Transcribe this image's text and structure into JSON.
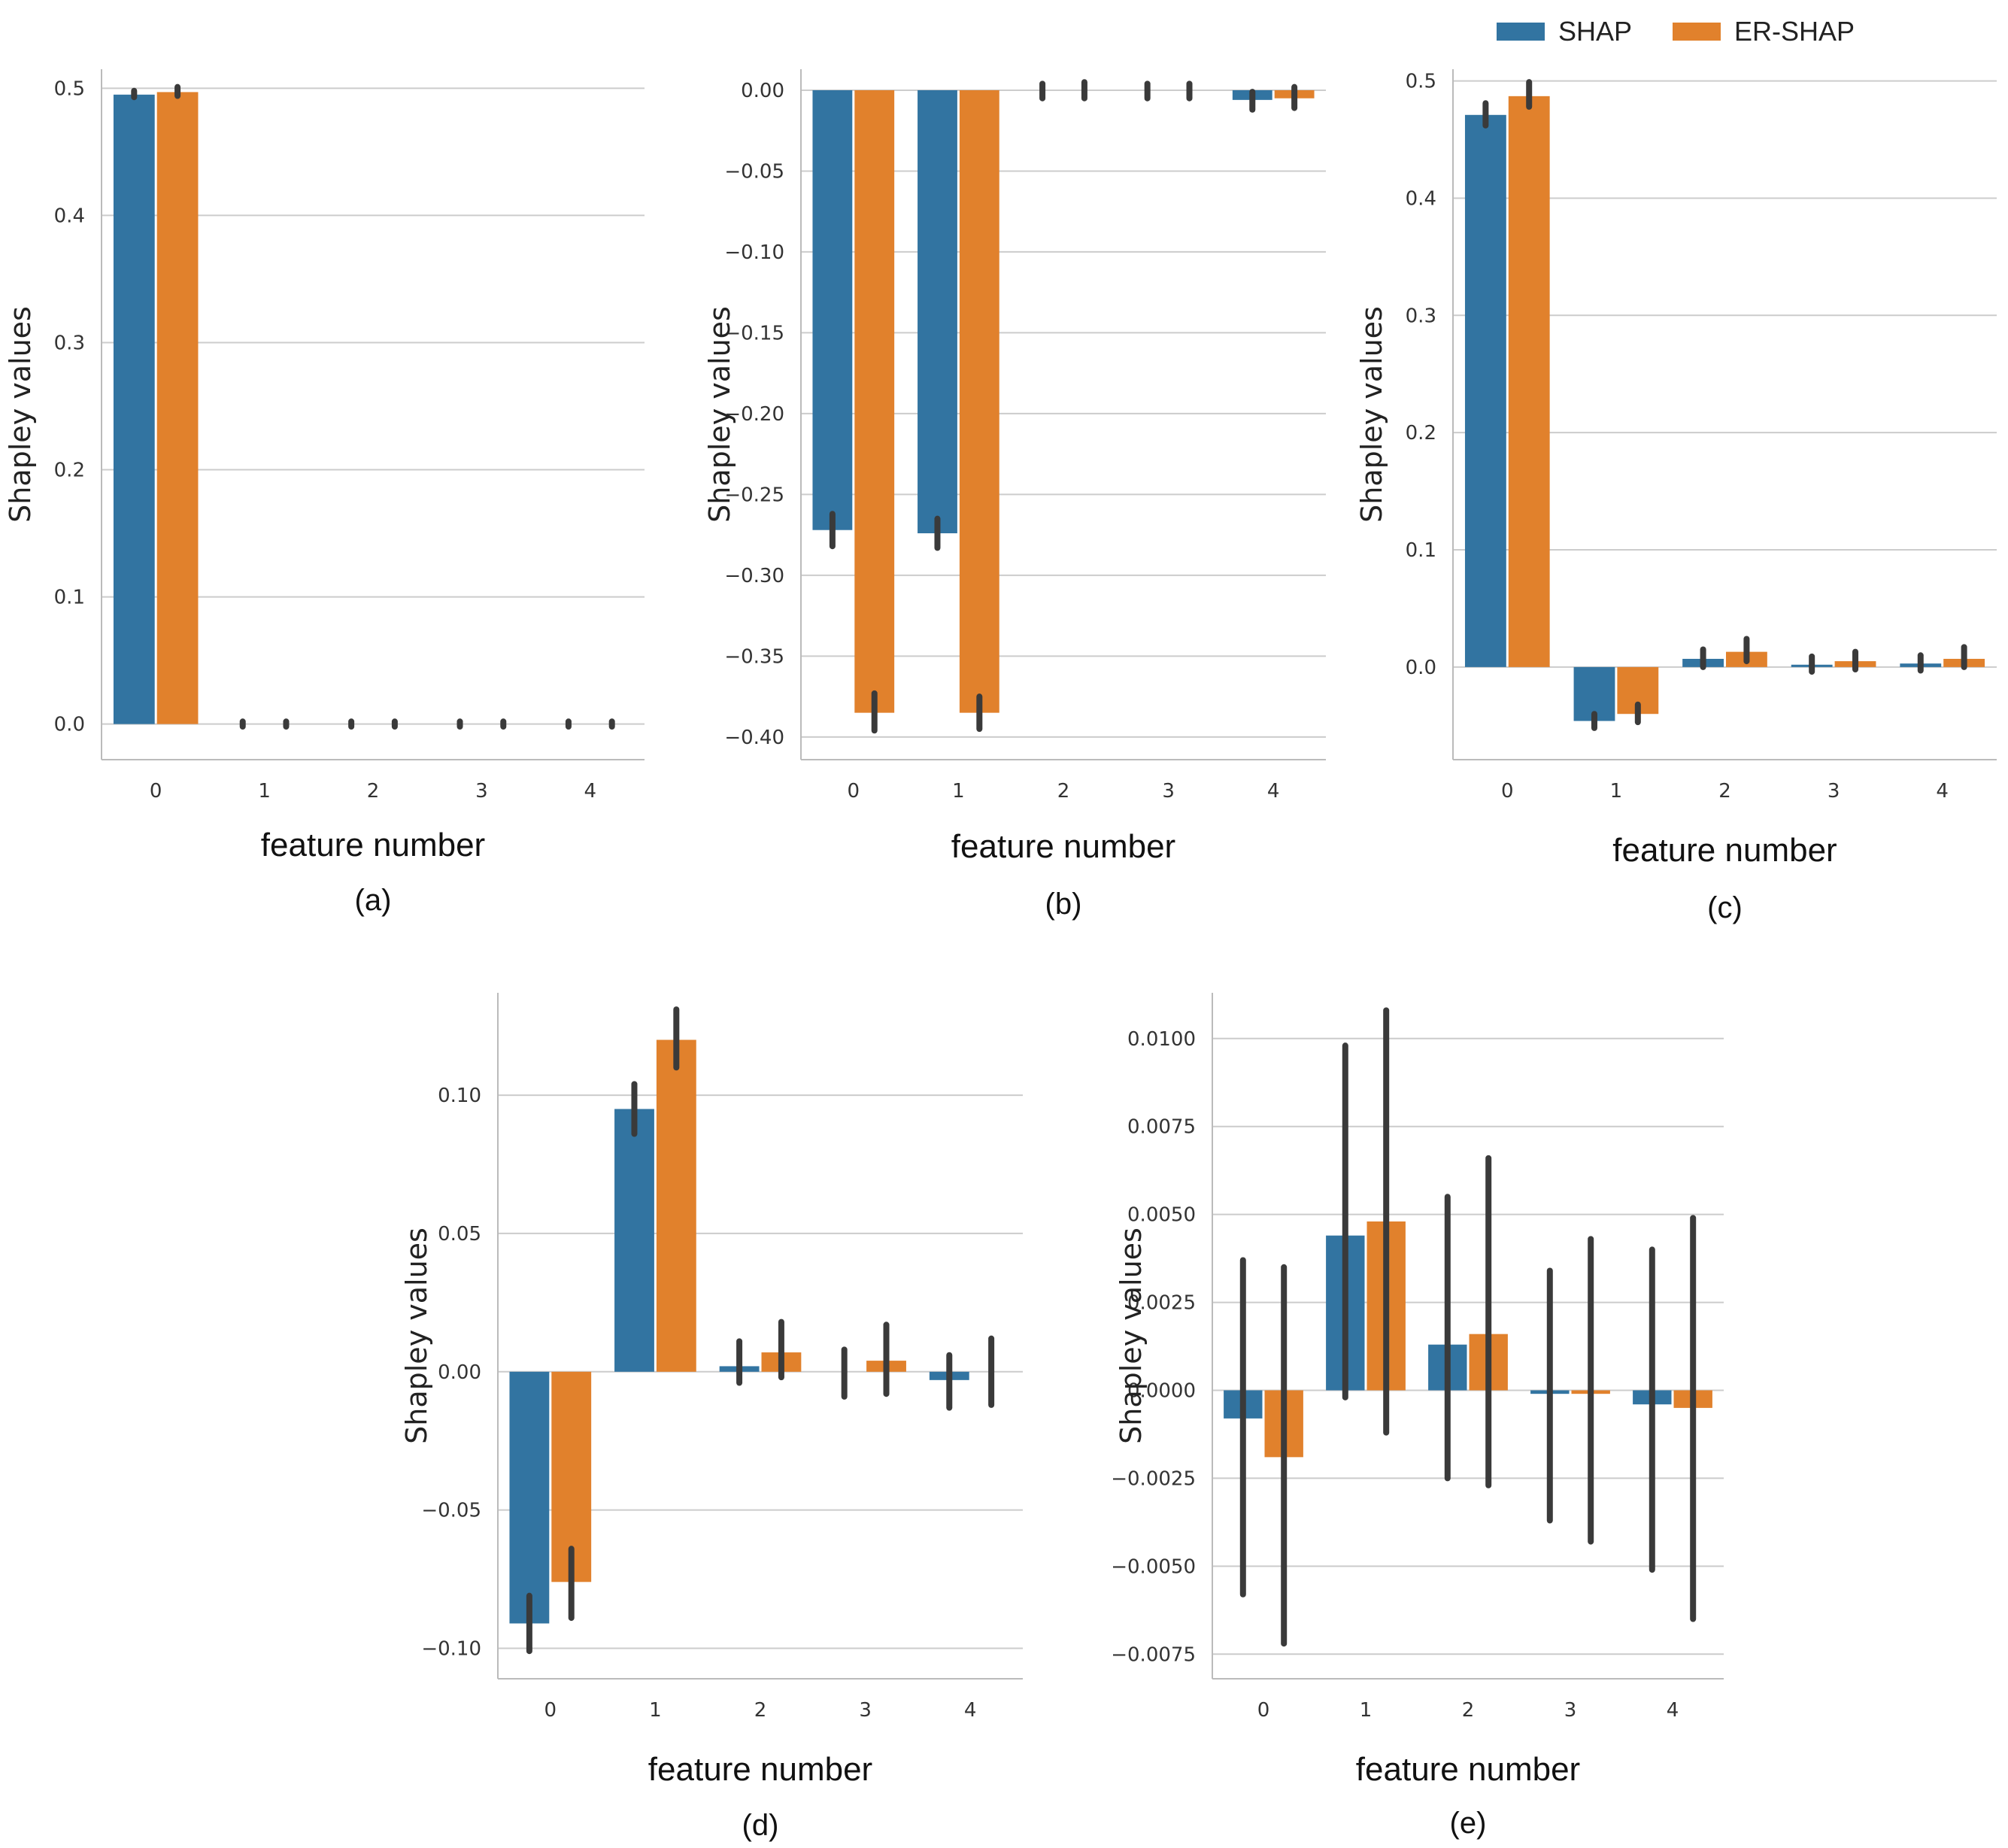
{
  "legend": {
    "entries": [
      {
        "label": "SHAP",
        "color": "#3274a1"
      },
      {
        "label": "ER-SHAP",
        "color": "#e1812c"
      }
    ]
  },
  "error_bar_color": "#3a3a3a",
  "chart_data": [
    {
      "type": "bar",
      "caption": "(a)",
      "xlabel": "feature number",
      "ylabel": "Shapley values",
      "categories": [
        "0",
        "1",
        "2",
        "3",
        "4"
      ],
      "ylim": [
        -0.028,
        0.515
      ],
      "yticks": [
        0.0,
        0.1,
        0.2,
        0.3,
        0.4,
        0.5
      ],
      "ytick_labels": [
        "0.0",
        "0.1",
        "0.2",
        "0.3",
        "0.4",
        "0.5"
      ],
      "grid": true,
      "series": [
        {
          "name": "SHAP",
          "values": [
            0.495,
            0.0,
            0.0,
            0.0,
            0.0
          ],
          "err_low": [
            0.493,
            -0.002,
            -0.002,
            -0.002,
            -0.002
          ],
          "err_high": [
            0.498,
            0.002,
            0.002,
            0.002,
            0.002
          ]
        },
        {
          "name": "ER-SHAP",
          "values": [
            0.497,
            0.0,
            0.0,
            0.0,
            0.0
          ],
          "err_low": [
            0.494,
            -0.002,
            -0.002,
            -0.002,
            -0.002
          ],
          "err_high": [
            0.501,
            0.002,
            0.002,
            0.002,
            0.002
          ]
        }
      ]
    },
    {
      "type": "bar",
      "caption": "(b)",
      "xlabel": "feature number",
      "ylabel": "Shapley values",
      "categories": [
        "0",
        "1",
        "2",
        "3",
        "4"
      ],
      "ylim": [
        -0.414,
        0.013
      ],
      "yticks": [
        0.0,
        -0.05,
        -0.1,
        -0.15,
        -0.2,
        -0.25,
        -0.3,
        -0.35,
        -0.4
      ],
      "ytick_labels": [
        "0.00",
        "−0.05",
        "−0.10",
        "−0.15",
        "−0.20",
        "−0.25",
        "−0.30",
        "−0.35",
        "−0.40"
      ],
      "grid": true,
      "series": [
        {
          "name": "SHAP",
          "values": [
            -0.272,
            -0.274,
            0.0,
            0.0,
            -0.006
          ],
          "err_low": [
            -0.282,
            -0.283,
            -0.005,
            -0.005,
            -0.012
          ],
          "err_high": [
            -0.262,
            -0.265,
            0.004,
            0.004,
            -0.001
          ]
        },
        {
          "name": "ER-SHAP",
          "values": [
            -0.385,
            -0.385,
            0.0,
            0.0,
            -0.005
          ],
          "err_low": [
            -0.396,
            -0.395,
            -0.005,
            -0.005,
            -0.011
          ],
          "err_high": [
            -0.373,
            -0.375,
            0.005,
            0.004,
            0.002
          ]
        }
      ]
    },
    {
      "type": "bar",
      "caption": "(c)",
      "xlabel": "feature number",
      "ylabel": "Shapley values",
      "categories": [
        "0",
        "1",
        "2",
        "3",
        "4"
      ],
      "ylim": [
        -0.079,
        0.51
      ],
      "yticks": [
        0.0,
        0.1,
        0.2,
        0.3,
        0.4,
        0.5
      ],
      "ytick_labels": [
        "0.0",
        "0.1",
        "0.2",
        "0.3",
        "0.4",
        "0.5"
      ],
      "grid": true,
      "series": [
        {
          "name": "SHAP",
          "values": [
            0.471,
            -0.046,
            0.007,
            0.002,
            0.003
          ],
          "err_low": [
            0.462,
            -0.052,
            0.0,
            -0.004,
            -0.003
          ],
          "err_high": [
            0.481,
            -0.04,
            0.015,
            0.009,
            0.01
          ]
        },
        {
          "name": "ER-SHAP",
          "values": [
            0.487,
            -0.04,
            0.013,
            0.005,
            0.007
          ],
          "err_low": [
            0.478,
            -0.047,
            0.005,
            -0.002,
            0.0
          ],
          "err_high": [
            0.499,
            -0.032,
            0.024,
            0.013,
            0.017
          ]
        }
      ]
    },
    {
      "type": "bar",
      "caption": "(d)",
      "xlabel": "feature number",
      "ylabel": "Shapley values",
      "categories": [
        "0",
        "1",
        "2",
        "3",
        "4"
      ],
      "ylim": [
        -0.111,
        0.137
      ],
      "yticks": [
        0.1,
        0.05,
        0.0,
        -0.05,
        -0.1
      ],
      "ytick_labels": [
        "0.10",
        "0.05",
        "0.00",
        "−0.05",
        "−0.10"
      ],
      "grid": true,
      "series": [
        {
          "name": "SHAP",
          "values": [
            -0.091,
            0.095,
            0.002,
            0.0,
            -0.003
          ],
          "err_low": [
            -0.101,
            0.086,
            -0.004,
            -0.009,
            -0.013
          ],
          "err_high": [
            -0.081,
            0.104,
            0.011,
            0.008,
            0.006
          ]
        },
        {
          "name": "ER-SHAP",
          "values": [
            -0.076,
            0.12,
            0.007,
            0.004,
            0.0
          ],
          "err_low": [
            -0.089,
            0.11,
            -0.002,
            -0.008,
            -0.012
          ],
          "err_high": [
            -0.064,
            0.131,
            0.018,
            0.017,
            0.012
          ]
        }
      ]
    },
    {
      "type": "bar",
      "caption": "(e)",
      "xlabel": "feature number",
      "ylabel": "Shapley values",
      "categories": [
        "0",
        "1",
        "2",
        "3",
        "4"
      ],
      "ylim": [
        -0.0082,
        0.0113
      ],
      "yticks": [
        0.01,
        0.0075,
        0.005,
        0.0025,
        0.0,
        -0.0025,
        -0.005,
        -0.0075
      ],
      "ytick_labels": [
        "0.0100",
        "0.0075",
        "0.0050",
        "0.0025",
        "0.0000",
        "−0.0025",
        "−0.0050",
        "−0.0075"
      ],
      "grid": true,
      "series": [
        {
          "name": "SHAP",
          "values": [
            -0.0008,
            0.0044,
            0.0013,
            -0.0001,
            -0.0004
          ],
          "err_low": [
            -0.0058,
            -0.0002,
            -0.0025,
            -0.0037,
            -0.0051
          ],
          "err_high": [
            0.0037,
            0.0098,
            0.0055,
            0.0034,
            0.004
          ]
        },
        {
          "name": "ER-SHAP",
          "values": [
            -0.0019,
            0.0048,
            0.0016,
            -0.0001,
            -0.0005
          ],
          "err_low": [
            -0.0072,
            -0.0012,
            -0.0027,
            -0.0043,
            -0.0065
          ],
          "err_high": [
            0.0035,
            0.0108,
            0.0066,
            0.0043,
            0.0049
          ]
        }
      ]
    }
  ]
}
